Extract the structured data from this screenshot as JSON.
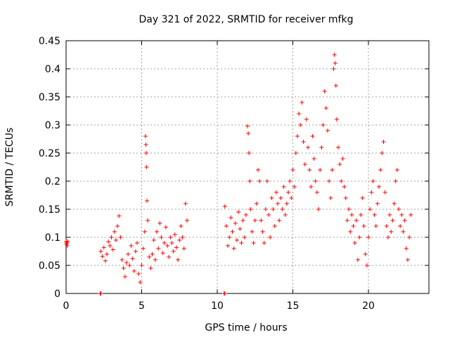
{
  "chart_data": {
    "type": "scatter",
    "title": "Day 321 of 2022, SRMTID for receiver mfkg",
    "xlabel": "GPS time / hours",
    "ylabel": "SRMTID / TECUs",
    "xlim": [
      0,
      24
    ],
    "ylim": [
      0,
      0.45
    ],
    "xticks": [
      0,
      5,
      10,
      15,
      20
    ],
    "xtick_labels": [
      "0",
      "5",
      "10",
      "15",
      "20"
    ],
    "yticks": [
      0,
      0.05,
      0.1,
      0.15,
      0.2,
      0.25,
      0.3,
      0.35,
      0.4,
      0.45
    ],
    "ytick_labels": [
      "0",
      "0.05",
      "0.1",
      "0.15",
      "0.2",
      "0.25",
      "0.3",
      "0.35",
      "0.4",
      "0.45"
    ],
    "grid": true,
    "marker": "+",
    "series": [
      {
        "name": "mfkg",
        "color": "#ff0000",
        "points": [
          [
            0.0,
            0.092
          ],
          [
            0.03,
            0.088
          ],
          [
            0.06,
            0.09
          ],
          [
            0.08,
            0.085
          ],
          [
            0.1,
            0.093
          ],
          [
            2.25,
            0.0
          ],
          [
            2.3,
            0.0
          ],
          [
            10.45,
            0.0
          ],
          [
            10.5,
            0.0
          ],
          [
            2.3,
            0.075
          ],
          [
            2.4,
            0.066
          ],
          [
            2.5,
            0.082
          ],
          [
            2.6,
            0.058
          ],
          [
            2.7,
            0.07
          ],
          [
            2.8,
            0.092
          ],
          [
            2.9,
            0.085
          ],
          [
            3.0,
            0.1
          ],
          [
            3.1,
            0.078
          ],
          [
            3.2,
            0.11
          ],
          [
            3.3,
            0.095
          ],
          [
            3.4,
            0.12
          ],
          [
            3.5,
            0.138
          ],
          [
            3.6,
            0.1
          ],
          [
            3.7,
            0.06
          ],
          [
            3.8,
            0.045
          ],
          [
            3.9,
            0.03
          ],
          [
            4.0,
            0.055
          ],
          [
            4.1,
            0.07
          ],
          [
            4.2,
            0.05
          ],
          [
            4.3,
            0.085
          ],
          [
            4.4,
            0.062
          ],
          [
            4.5,
            0.04
          ],
          [
            4.6,
            0.075
          ],
          [
            4.7,
            0.09
          ],
          [
            4.8,
            0.035
          ],
          [
            4.9,
            0.02
          ],
          [
            5.0,
            0.05
          ],
          [
            5.1,
            0.08
          ],
          [
            5.2,
            0.11
          ],
          [
            5.25,
            0.28
          ],
          [
            5.28,
            0.265
          ],
          [
            5.3,
            0.25
          ],
          [
            5.32,
            0.225
          ],
          [
            5.35,
            0.165
          ],
          [
            5.4,
            0.13
          ],
          [
            5.5,
            0.065
          ],
          [
            5.6,
            0.045
          ],
          [
            5.7,
            0.07
          ],
          [
            5.8,
            0.095
          ],
          [
            5.9,
            0.06
          ],
          [
            6.0,
            0.11
          ],
          [
            6.1,
            0.08
          ],
          [
            6.2,
            0.125
          ],
          [
            6.3,
            0.1
          ],
          [
            6.4,
            0.072
          ],
          [
            6.5,
            0.09
          ],
          [
            6.6,
            0.118
          ],
          [
            6.7,
            0.085
          ],
          [
            6.8,
            0.065
          ],
          [
            6.9,
            0.1
          ],
          [
            7.0,
            0.09
          ],
          [
            7.1,
            0.075
          ],
          [
            7.2,
            0.105
          ],
          [
            7.3,
            0.082
          ],
          [
            7.4,
            0.06
          ],
          [
            7.5,
            0.095
          ],
          [
            7.6,
            0.12
          ],
          [
            7.7,
            0.1
          ],
          [
            7.8,
            0.08
          ],
          [
            7.9,
            0.16
          ],
          [
            8.0,
            0.13
          ],
          [
            10.5,
            0.155
          ],
          [
            10.6,
            0.12
          ],
          [
            10.7,
            0.085
          ],
          [
            10.8,
            0.1
          ],
          [
            10.9,
            0.135
          ],
          [
            11.0,
            0.11
          ],
          [
            11.1,
            0.08
          ],
          [
            11.2,
            0.125
          ],
          [
            11.3,
            0.095
          ],
          [
            11.4,
            0.145
          ],
          [
            11.5,
            0.115
          ],
          [
            11.6,
            0.09
          ],
          [
            11.7,
            0.13
          ],
          [
            11.8,
            0.1
          ],
          [
            11.9,
            0.14
          ],
          [
            12.0,
            0.298
          ],
          [
            12.05,
            0.285
          ],
          [
            12.1,
            0.25
          ],
          [
            12.15,
            0.2
          ],
          [
            12.2,
            0.15
          ],
          [
            12.3,
            0.11
          ],
          [
            12.4,
            0.09
          ],
          [
            12.5,
            0.13
          ],
          [
            12.6,
            0.16
          ],
          [
            12.7,
            0.22
          ],
          [
            12.8,
            0.2
          ],
          [
            12.9,
            0.13
          ],
          [
            13.0,
            0.11
          ],
          [
            13.1,
            0.09
          ],
          [
            13.2,
            0.15
          ],
          [
            13.3,
            0.2
          ],
          [
            13.4,
            0.14
          ],
          [
            13.5,
            0.1
          ],
          [
            13.6,
            0.17
          ],
          [
            13.7,
            0.15
          ],
          [
            13.8,
            0.12
          ],
          [
            13.9,
            0.18
          ],
          [
            14.0,
            0.16
          ],
          [
            14.1,
            0.13
          ],
          [
            14.2,
            0.17
          ],
          [
            14.3,
            0.15
          ],
          [
            14.4,
            0.19
          ],
          [
            14.5,
            0.14
          ],
          [
            14.6,
            0.16
          ],
          [
            14.7,
            0.18
          ],
          [
            14.8,
            0.2
          ],
          [
            14.9,
            0.17
          ],
          [
            15.0,
            0.22
          ],
          [
            15.1,
            0.19
          ],
          [
            15.2,
            0.25
          ],
          [
            15.3,
            0.28
          ],
          [
            15.4,
            0.32
          ],
          [
            15.5,
            0.3
          ],
          [
            15.6,
            0.34
          ],
          [
            15.7,
            0.27
          ],
          [
            15.8,
            0.23
          ],
          [
            15.9,
            0.31
          ],
          [
            16.0,
            0.26
          ],
          [
            16.1,
            0.22
          ],
          [
            16.2,
            0.19
          ],
          [
            16.3,
            0.28
          ],
          [
            16.4,
            0.24
          ],
          [
            16.5,
            0.2
          ],
          [
            16.6,
            0.18
          ],
          [
            16.7,
            0.15
          ],
          [
            16.8,
            0.22
          ],
          [
            16.9,
            0.26
          ],
          [
            17.0,
            0.3
          ],
          [
            17.1,
            0.36
          ],
          [
            17.2,
            0.33
          ],
          [
            17.3,
            0.29
          ],
          [
            17.4,
            0.2
          ],
          [
            17.5,
            0.17
          ],
          [
            17.6,
            0.22
          ],
          [
            17.7,
            0.4
          ],
          [
            17.75,
            0.425
          ],
          [
            17.8,
            0.41
          ],
          [
            17.85,
            0.37
          ],
          [
            17.9,
            0.31
          ],
          [
            18.0,
            0.26
          ],
          [
            18.1,
            0.23
          ],
          [
            18.2,
            0.2
          ],
          [
            18.3,
            0.24
          ],
          [
            18.4,
            0.19
          ],
          [
            18.5,
            0.17
          ],
          [
            18.6,
            0.13
          ],
          [
            18.7,
            0.15
          ],
          [
            18.8,
            0.11
          ],
          [
            18.9,
            0.14
          ],
          [
            19.0,
            0.12
          ],
          [
            19.1,
            0.09
          ],
          [
            19.2,
            0.13
          ],
          [
            19.3,
            0.06
          ],
          [
            19.4,
            0.1
          ],
          [
            19.5,
            0.14
          ],
          [
            19.6,
            0.17
          ],
          [
            19.7,
            0.12
          ],
          [
            19.8,
            0.07
          ],
          [
            19.9,
            0.05
          ],
          [
            20.0,
            0.1
          ],
          [
            20.1,
            0.15
          ],
          [
            20.2,
            0.18
          ],
          [
            20.3,
            0.2
          ],
          [
            20.4,
            0.14
          ],
          [
            20.5,
            0.12
          ],
          [
            20.6,
            0.16
          ],
          [
            20.7,
            0.19
          ],
          [
            20.8,
            0.22
          ],
          [
            20.9,
            0.25
          ],
          [
            21.0,
            0.27
          ],
          [
            21.1,
            0.18
          ],
          [
            21.2,
            0.12
          ],
          [
            21.3,
            0.1
          ],
          [
            21.4,
            0.14
          ],
          [
            21.5,
            0.11
          ],
          [
            21.6,
            0.13
          ],
          [
            21.7,
            0.16
          ],
          [
            21.8,
            0.2
          ],
          [
            21.9,
            0.22
          ],
          [
            22.0,
            0.15
          ],
          [
            22.1,
            0.12
          ],
          [
            22.2,
            0.14
          ],
          [
            22.3,
            0.11
          ],
          [
            22.4,
            0.13
          ],
          [
            22.5,
            0.08
          ],
          [
            22.6,
            0.06
          ],
          [
            22.7,
            0.1
          ],
          [
            22.8,
            0.14
          ]
        ]
      }
    ]
  }
}
